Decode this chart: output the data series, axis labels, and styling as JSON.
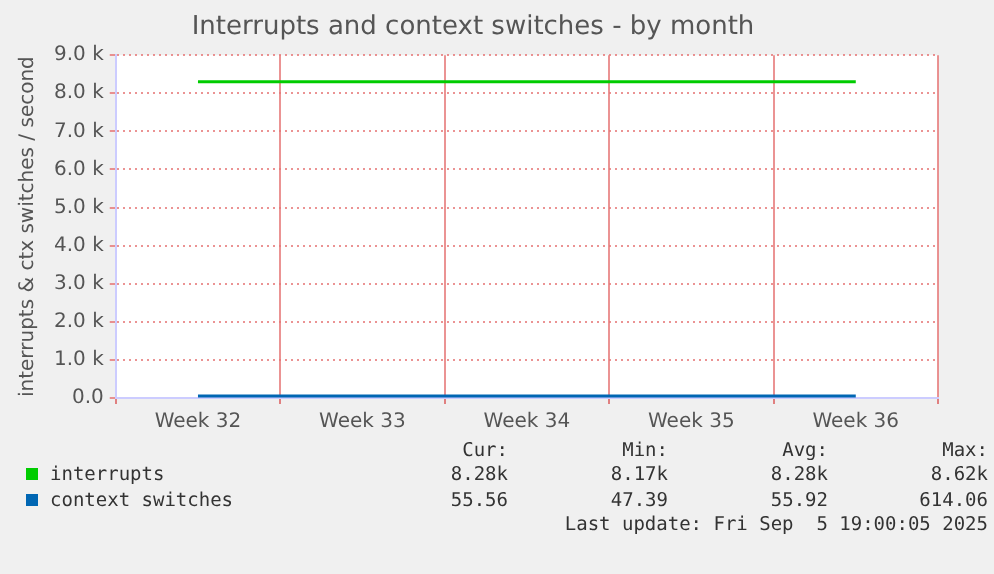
{
  "chart_data": {
    "type": "line",
    "title": "Interrupts and context switches - by month",
    "ylabel": "interrupts & ctx switches / second",
    "categories": [
      "Week 32",
      "Week 33",
      "Week 34",
      "Week 35",
      "Week 36"
    ],
    "ylim": [
      0,
      9000
    ],
    "yticks": [
      {
        "value": 0,
        "label": "0.0"
      },
      {
        "value": 1000,
        "label": "1.0 k"
      },
      {
        "value": 2000,
        "label": "2.0 k"
      },
      {
        "value": 3000,
        "label": "3.0 k"
      },
      {
        "value": 4000,
        "label": "4.0 k"
      },
      {
        "value": 5000,
        "label": "5.0 k"
      },
      {
        "value": 6000,
        "label": "6.0 k"
      },
      {
        "value": 7000,
        "label": "7.0 k"
      },
      {
        "value": 8000,
        "label": "8.0 k"
      },
      {
        "value": 9000,
        "label": "9.0 k"
      }
    ],
    "series": [
      {
        "name": "interrupts",
        "color": "#00cc00",
        "values": [
          8300,
          8300,
          8300,
          8300,
          8300
        ]
      },
      {
        "name": "context switches",
        "color": "#0066b3",
        "values": [
          50,
          50,
          50,
          50,
          50
        ]
      }
    ],
    "annotations": [
      "Cur:",
      "Min:",
      "Avg:",
      "Max:",
      "8.28k",
      "8.17k",
      "8.28k",
      "8.62k",
      "55.56",
      "47.39",
      "55.92",
      "614.06",
      "Last update: Fri Sep  5 19:00:05 2025"
    ],
    "grid": true,
    "legend": "bottom",
    "marker": "none",
    "line_style": "solid"
  }
}
